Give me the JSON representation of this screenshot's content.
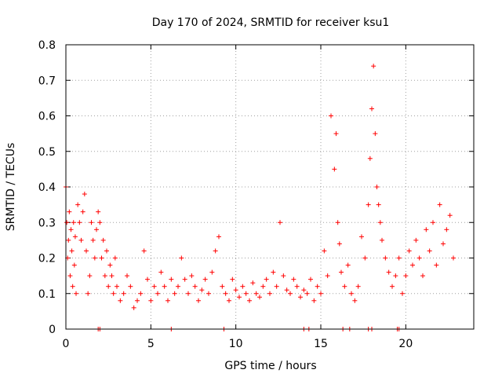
{
  "chart_data": {
    "type": "scatter",
    "title": "Day 170 of 2024, SRMTID for receiver ksu1",
    "xlabel": "GPS time / hours",
    "ylabel": "SRMTID / TECUs",
    "xlim": [
      0,
      24
    ],
    "ylim": [
      0,
      0.8
    ],
    "xticks": [
      0,
      5,
      10,
      15,
      20
    ],
    "yticks": [
      0,
      0.1,
      0.2,
      0.3,
      0.4,
      0.5,
      0.6,
      0.7,
      0.8
    ],
    "grid": true,
    "marker": "+",
    "color": "#ff0000",
    "series": [
      {
        "name": "SRMTID",
        "x": [
          0.0,
          0.05,
          0.1,
          0.15,
          0.2,
          0.25,
          0.3,
          0.35,
          0.4,
          0.45,
          0.5,
          0.55,
          0.6,
          0.7,
          0.8,
          0.9,
          1.0,
          1.1,
          1.2,
          1.3,
          1.4,
          1.5,
          1.6,
          1.7,
          1.8,
          1.9,
          2.0,
          2.1,
          2.2,
          2.3,
          2.4,
          2.5,
          2.6,
          2.7,
          2.8,
          2.9,
          3.0,
          3.2,
          3.4,
          3.6,
          3.8,
          4.0,
          4.2,
          4.4,
          4.6,
          4.8,
          5.0,
          5.2,
          5.4,
          5.6,
          5.8,
          6.0,
          6.2,
          6.4,
          6.6,
          6.8,
          7.0,
          7.2,
          7.4,
          7.6,
          7.8,
          8.0,
          8.2,
          8.4,
          8.6,
          8.8,
          9.0,
          9.2,
          9.4,
          9.6,
          9.8,
          10.0,
          10.2,
          10.4,
          10.6,
          10.8,
          11.0,
          11.2,
          11.4,
          11.6,
          11.8,
          12.0,
          12.2,
          12.4,
          12.6,
          12.8,
          13.0,
          13.2,
          13.4,
          13.6,
          13.8,
          14.0,
          14.2,
          14.4,
          14.6,
          14.8,
          15.0,
          15.2,
          15.4,
          15.6,
          15.8,
          15.9,
          16.0,
          16.1,
          16.2,
          16.4,
          16.6,
          16.8,
          17.0,
          17.2,
          17.4,
          17.6,
          17.8,
          17.9,
          18.0,
          18.1,
          18.2,
          18.3,
          18.4,
          18.5,
          18.6,
          18.8,
          19.0,
          19.2,
          19.4,
          19.6,
          19.8,
          20.0,
          20.2,
          20.4,
          20.6,
          20.8,
          21.0,
          21.2,
          21.4,
          21.6,
          21.8,
          22.0,
          22.2,
          22.4,
          22.6,
          22.8
        ],
        "y": [
          0.4,
          0.3,
          0.2,
          0.25,
          0.33,
          0.15,
          0.28,
          0.22,
          0.12,
          0.3,
          0.18,
          0.26,
          0.1,
          0.35,
          0.3,
          0.25,
          0.33,
          0.38,
          0.22,
          0.1,
          0.15,
          0.3,
          0.25,
          0.2,
          0.28,
          0.33,
          0.3,
          0.2,
          0.25,
          0.15,
          0.22,
          0.12,
          0.18,
          0.15,
          0.1,
          0.2,
          0.12,
          0.08,
          0.1,
          0.15,
          0.12,
          0.06,
          0.08,
          0.1,
          0.22,
          0.14,
          0.08,
          0.12,
          0.1,
          0.16,
          0.12,
          0.08,
          0.14,
          0.1,
          0.12,
          0.2,
          0.14,
          0.1,
          0.15,
          0.12,
          0.08,
          0.11,
          0.14,
          0.1,
          0.16,
          0.22,
          0.26,
          0.12,
          0.1,
          0.08,
          0.14,
          0.11,
          0.09,
          0.12,
          0.1,
          0.08,
          0.13,
          0.1,
          0.09,
          0.12,
          0.14,
          0.1,
          0.16,
          0.12,
          0.3,
          0.15,
          0.11,
          0.1,
          0.14,
          0.12,
          0.09,
          0.11,
          0.1,
          0.14,
          0.08,
          0.12,
          0.1,
          0.22,
          0.15,
          0.6,
          0.45,
          0.55,
          0.3,
          0.24,
          0.16,
          0.12,
          0.18,
          0.1,
          0.08,
          0.12,
          0.26,
          0.2,
          0.35,
          0.48,
          0.62,
          0.74,
          0.55,
          0.4,
          0.35,
          0.3,
          0.25,
          0.2,
          0.16,
          0.12,
          0.15,
          0.2,
          0.1,
          0.15,
          0.22,
          0.18,
          0.25,
          0.2,
          0.15,
          0.28,
          0.22,
          0.3,
          0.18,
          0.35,
          0.24,
          0.28,
          0.32,
          0.2
        ],
        "gap_markers_x": [
          1.9,
          2.0,
          6.2,
          9.3,
          14.0,
          14.3,
          16.3,
          16.7,
          17.8,
          18.0,
          19.5,
          19.6
        ]
      }
    ]
  }
}
